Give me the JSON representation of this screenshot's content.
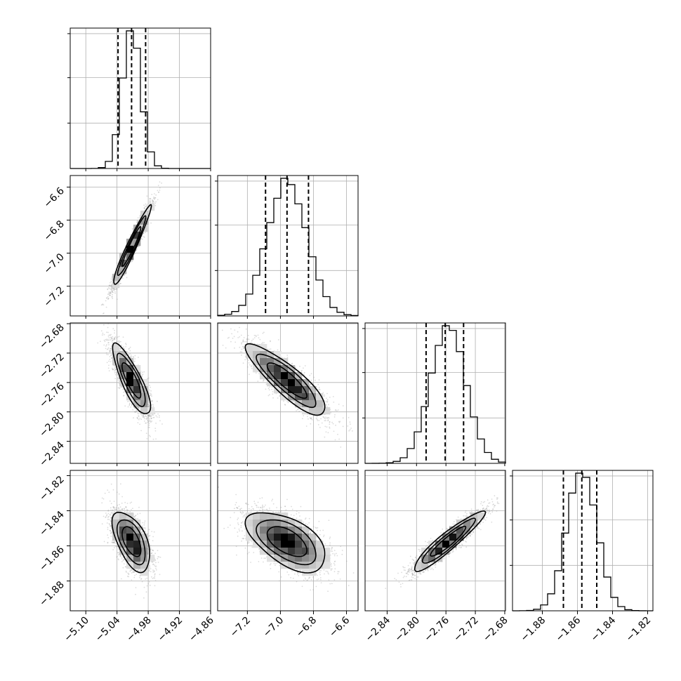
{
  "chart_data": {
    "type": "corner",
    "parameters": [
      {
        "range": [
          -5.13,
          -4.86
        ],
        "ticks": [
          -5.1,
          -5.04,
          -4.98,
          -4.92,
          -4.86
        ],
        "tick_labels": [
          "−5.10",
          "−5.04",
          "−4.98",
          "−4.92",
          "−4.86"
        ],
        "quantiles": [
          -5.038,
          -5.012,
          -4.985
        ],
        "mean": -5.012,
        "sigma": 0.018
      },
      {
        "range": [
          -7.38,
          -6.53
        ],
        "ticks": [
          -7.2,
          -7.0,
          -6.8,
          -6.6
        ],
        "tick_labels": [
          "−7.2",
          "−7.0",
          "−6.8",
          "−6.6"
        ],
        "quantiles": [
          -7.09,
          -6.96,
          -6.83
        ],
        "mean": -6.96,
        "sigma": 0.12
      },
      {
        "range": [
          -2.87,
          -2.679
        ],
        "ticks": [
          -2.84,
          -2.8,
          -2.76,
          -2.72,
          -2.68
        ],
        "tick_labels": [
          "−2.84",
          "−2.80",
          "−2.76",
          "−2.72",
          "−2.68"
        ],
        "quantiles": [
          -2.787,
          -2.761,
          -2.736
        ],
        "mean": -2.757,
        "sigma": 0.024
      },
      {
        "range": [
          -1.897,
          -1.817
        ],
        "ticks": [
          -1.88,
          -1.86,
          -1.84,
          -1.82
        ],
        "tick_labels": [
          "−1.88",
          "−1.86",
          "−1.84",
          "−1.82"
        ],
        "quantiles": [
          -1.868,
          -1.8575,
          -1.849
        ],
        "mean": -1.8575,
        "sigma": 0.0085
      }
    ],
    "correlations": [
      [
        1.0,
        0.96,
        -0.82,
        -0.55
      ],
      [
        0.96,
        1.0,
        -0.86,
        -0.55
      ],
      [
        -0.82,
        -0.86,
        1.0,
        0.93
      ],
      [
        -0.55,
        -0.55,
        0.93,
        1.0
      ]
    ],
    "grid": true,
    "quantile_line_style": "dashed",
    "contour_levels_sigma": [
      1.0,
      1.5,
      2.0
    ],
    "colors": {
      "hist": "#000000",
      "grid": "#b0b0b0",
      "points": "#9a9a9a",
      "contour": "#000000"
    }
  }
}
